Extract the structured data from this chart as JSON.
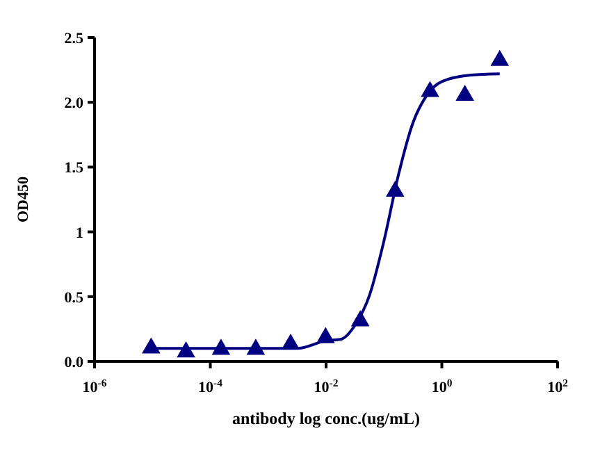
{
  "chart_data": {
    "type": "scatter",
    "xlabel": "antibody log conc.(ug/mL)",
    "ylabel": "OD450",
    "log": "x",
    "marker": "triangle",
    "grid": false,
    "xlim": [
      1e-06,
      100
    ],
    "xticks": [
      {
        "value": 1e-06,
        "label": "10$^{-6}$"
      },
      {
        "value": 0.0001,
        "label": "10$^{-4}$"
      },
      {
        "value": 0.01,
        "label": "10$^{-2}$"
      },
      {
        "value": 1,
        "label": "10$^{0}$"
      },
      {
        "value": 100,
        "label": "10$^{2}$"
      }
    ],
    "ylim": [
      0,
      2.5
    ],
    "yticks": [
      {
        "value": 0,
        "label": "0.0"
      },
      {
        "value": 0.5,
        "label": "0.5"
      },
      1,
      {
        "value": 1.5,
        "label": "1.5"
      },
      {
        "value": 2,
        "label": "2.0"
      },
      {
        "value": 2.5,
        "label": "2.5"
      }
    ],
    "series": [
      {
        "color": "#000080",
        "x": [
          9.5e-06,
          3.8e-05,
          0.000153,
          0.00061,
          0.00244,
          0.0098,
          0.039,
          0.156,
          0.625,
          2.5,
          10
        ],
        "values": [
          0.11,
          0.08,
          0.1,
          0.1,
          0.14,
          0.19,
          0.32,
          1.32,
          2.09,
          2.06,
          2.33
        ]
      },
      {
        "type": "line",
        "color": "#000080",
        "marker": "none",
        "x": [
          1e-05,
          0.0001,
          0.001,
          0.00316,
          0.01,
          0.0178,
          0.0316,
          0.0562,
          0.1,
          0.178,
          0.316,
          0.562,
          1,
          3.16,
          10
        ],
        "values": [
          0.1,
          0.1,
          0.1,
          0.1,
          0.16,
          0.17,
          0.28,
          0.51,
          0.93,
          1.44,
          1.84,
          2.06,
          2.16,
          2.21,
          2.22
        ]
      }
    ]
  }
}
